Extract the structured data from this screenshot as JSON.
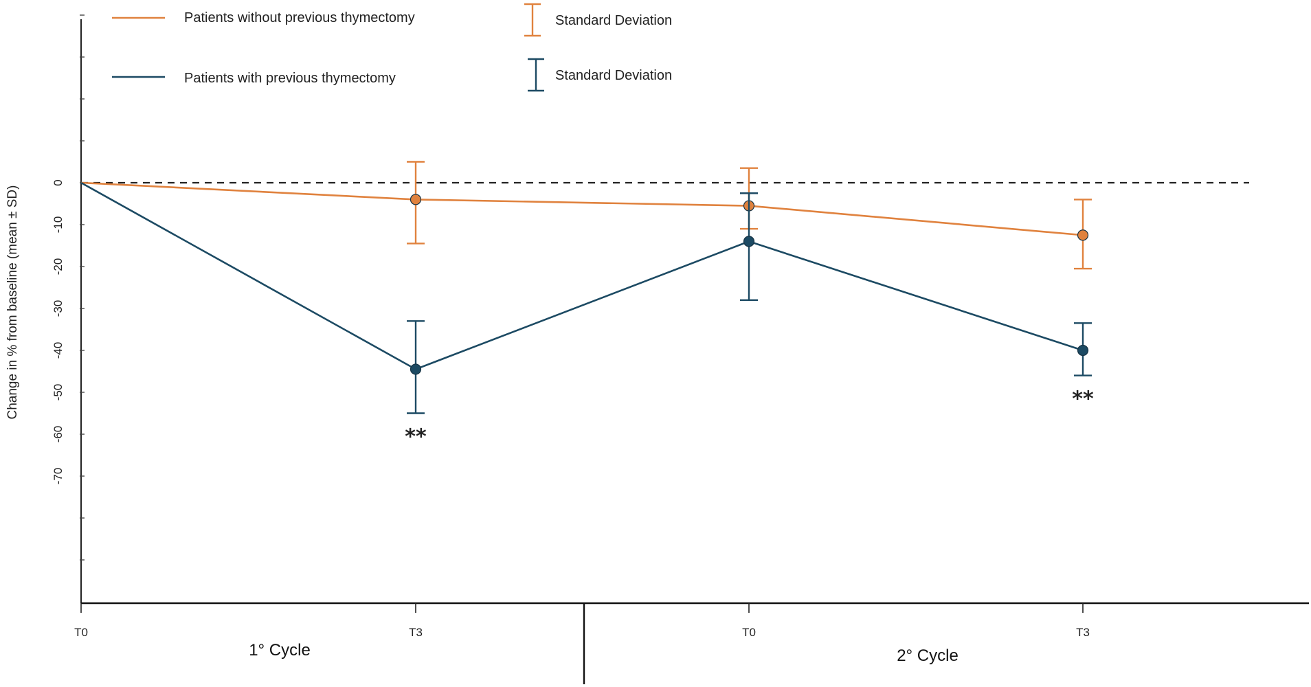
{
  "chart_data": {
    "type": "line",
    "title": "",
    "xlabel": "",
    "ylabel": "Change in % from baseline (mean ± SD)",
    "ylim": [
      -100,
      40
    ],
    "y_ticks": [
      0,
      -10,
      -20,
      -30,
      -40,
      -50,
      -60,
      -70
    ],
    "y_tick_labels": [
      "0",
      "-10",
      "-20",
      "-30",
      "-40",
      "-50",
      "-60",
      "-70"
    ],
    "x": [
      "T0",
      "T3",
      "T0",
      "T3"
    ],
    "cycles": [
      "1° Cycle",
      "2° Cycle"
    ],
    "reference_line": 0,
    "series": [
      {
        "name": "Patients without previous thymectomy",
        "color": "#e0823e",
        "values": [
          0,
          -4,
          -5.5,
          -12.5
        ],
        "sd_upper": [
          null,
          5,
          3.5,
          -4
        ],
        "sd_lower": [
          null,
          -14.5,
          -11,
          -20.5
        ]
      },
      {
        "name": "Patients with previous thymectomy",
        "color": "#1c4a63",
        "values": [
          0,
          -44.5,
          -14,
          -40
        ],
        "sd_upper": [
          null,
          -33,
          -2.5,
          -33.5
        ],
        "sd_lower": [
          null,
          -55,
          -28,
          -46
        ]
      }
    ],
    "legend": [
      {
        "series": "Patients without previous thymectomy",
        "error_label": "Standard Deviation"
      },
      {
        "series": "Patients with previous thymectomy",
        "error_label": "Standard Deviation"
      }
    ],
    "annotations": [
      {
        "text": "**",
        "x_index": 1,
        "series": 1
      },
      {
        "text": "**",
        "x_index": 3,
        "series": 1
      }
    ]
  }
}
